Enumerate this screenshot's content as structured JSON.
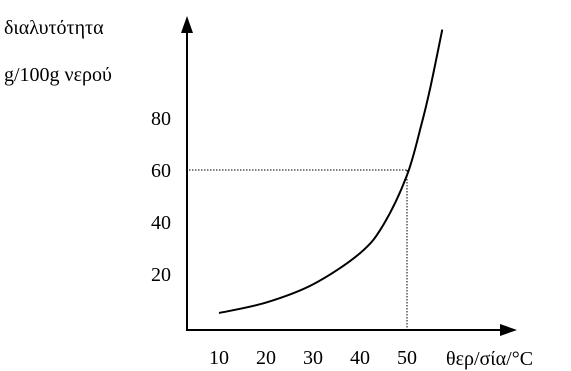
{
  "chart_data": {
    "type": "line",
    "ylabel_line1": "διαλυτότητα",
    "ylabel_line2": "g/100g νερού",
    "xlabel": "θερ/σία/°C",
    "x_ticks": [
      "10",
      "20",
      "30",
      "40",
      "50"
    ],
    "y_ticks": [
      "20",
      "40",
      "60",
      "80"
    ],
    "series": [
      {
        "x": [
          10,
          20,
          30,
          40,
          45,
          50,
          53,
          55,
          57.5
        ],
        "y": [
          5,
          9,
          16,
          28,
          39,
          58,
          77,
          92,
          114
        ]
      }
    ],
    "guide_point": {
      "x": 50,
      "y": 60
    },
    "grid": false
  }
}
